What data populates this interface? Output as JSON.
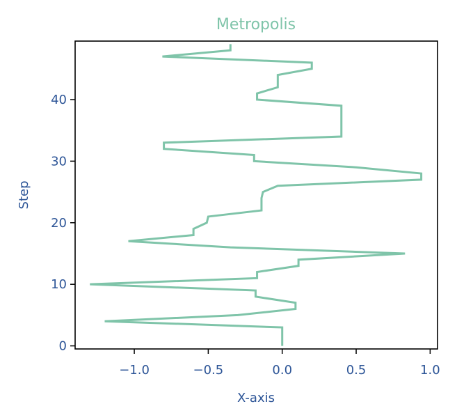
{
  "chart_data": {
    "type": "line",
    "title": "Metropolis",
    "xlabel": "X-axis",
    "ylabel": "Step",
    "xlim": [
      -1.4,
      1.05
    ],
    "ylim": [
      -0.5,
      49.5
    ],
    "x_ticks": [
      -1.0,
      -0.5,
      0.0,
      0.5,
      1.0
    ],
    "x_tick_labels": [
      "−1.0",
      "−0.5",
      "0.0",
      "0.5",
      "1.0"
    ],
    "y_ticks": [
      0,
      10,
      20,
      30,
      40
    ],
    "y_tick_labels": [
      "0",
      "10",
      "20",
      "30",
      "40"
    ],
    "grid": false,
    "series": [
      {
        "color": "#7fc4a9",
        "points": [
          {
            "x": 0.0,
            "y": 0
          },
          {
            "x": 0.0,
            "y": 1
          },
          {
            "x": 0.0,
            "y": 2
          },
          {
            "x": 0.0,
            "y": 3
          },
          {
            "x": -1.2,
            "y": 4
          },
          {
            "x": -0.3,
            "y": 5
          },
          {
            "x": 0.09,
            "y": 6
          },
          {
            "x": 0.09,
            "y": 7
          },
          {
            "x": -0.18,
            "y": 8
          },
          {
            "x": -0.18,
            "y": 9
          },
          {
            "x": -1.3,
            "y": 10
          },
          {
            "x": -0.17,
            "y": 11
          },
          {
            "x": -0.17,
            "y": 12
          },
          {
            "x": 0.11,
            "y": 13
          },
          {
            "x": 0.11,
            "y": 14
          },
          {
            "x": 0.83,
            "y": 15
          },
          {
            "x": -0.35,
            "y": 16
          },
          {
            "x": -1.04,
            "y": 17
          },
          {
            "x": -0.6,
            "y": 18
          },
          {
            "x": -0.6,
            "y": 19
          },
          {
            "x": -0.51,
            "y": 20
          },
          {
            "x": -0.5,
            "y": 21
          },
          {
            "x": -0.14,
            "y": 22
          },
          {
            "x": -0.14,
            "y": 23
          },
          {
            "x": -0.14,
            "y": 24
          },
          {
            "x": -0.13,
            "y": 25
          },
          {
            "x": -0.03,
            "y": 26
          },
          {
            "x": 0.94,
            "y": 27
          },
          {
            "x": 0.94,
            "y": 28
          },
          {
            "x": 0.5,
            "y": 29
          },
          {
            "x": -0.19,
            "y": 30
          },
          {
            "x": -0.19,
            "y": 31
          },
          {
            "x": -0.8,
            "y": 32
          },
          {
            "x": -0.8,
            "y": 33
          },
          {
            "x": 0.4,
            "y": 34
          },
          {
            "x": 0.4,
            "y": 35
          },
          {
            "x": 0.4,
            "y": 36
          },
          {
            "x": 0.4,
            "y": 37
          },
          {
            "x": 0.4,
            "y": 38
          },
          {
            "x": 0.4,
            "y": 39
          },
          {
            "x": -0.17,
            "y": 40
          },
          {
            "x": -0.17,
            "y": 41
          },
          {
            "x": -0.03,
            "y": 42
          },
          {
            "x": -0.03,
            "y": 43
          },
          {
            "x": -0.03,
            "y": 44
          },
          {
            "x": 0.2,
            "y": 45
          },
          {
            "x": 0.2,
            "y": 46
          },
          {
            "x": -0.81,
            "y": 47
          },
          {
            "x": -0.35,
            "y": 48
          },
          {
            "x": -0.35,
            "y": 49
          }
        ]
      }
    ]
  },
  "colors": {
    "title": "#7fc4a9",
    "labels": "#2d5597",
    "line": "#7fc4a9",
    "axes": "#000000"
  }
}
